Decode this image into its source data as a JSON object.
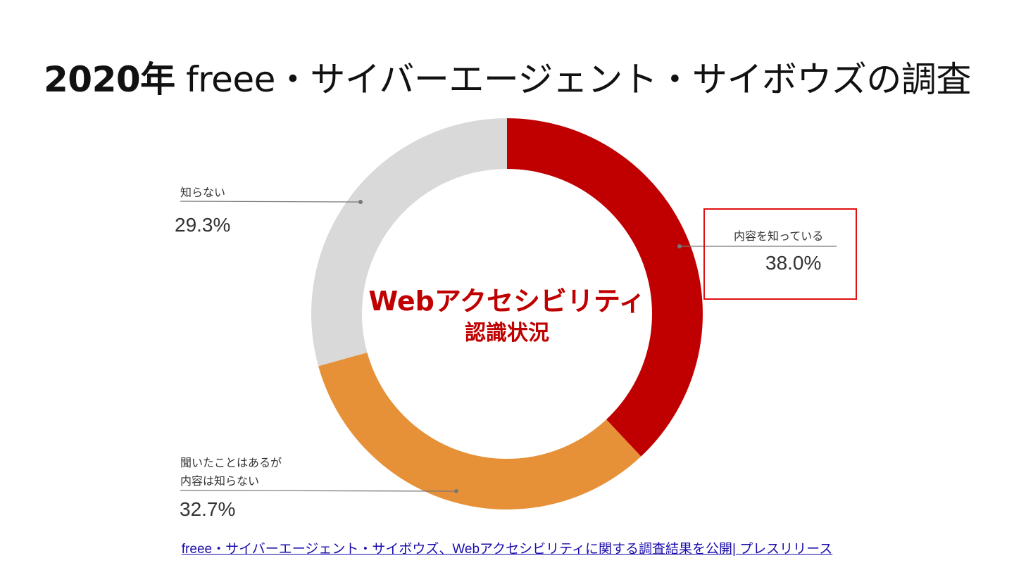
{
  "title": {
    "year": "2020年",
    "rest": " freee・サイバーエージェント・サイボウズの調査"
  },
  "center": {
    "line1": "Webアクセシビリティ",
    "line2": "認識状況"
  },
  "source_link": "freee・サイバーエージェント・サイボウズ、Webアクセシビリティに関する調査結果を公開| プレスリリース",
  "colors": {
    "aware": "#c00000",
    "heard": "#e69138",
    "unaware": "#d9d9d9",
    "highlight": "#e01010"
  },
  "chart_data": {
    "type": "pie",
    "donut": true,
    "start_angle_deg": 0,
    "direction": "clockwise",
    "slices": [
      {
        "name": "内容を知っている",
        "value": 38.0,
        "label": "38.0%",
        "color": "#c00000"
      },
      {
        "name": "聞いたことはあるが内容は知らない",
        "value": 32.7,
        "label": "32.7%",
        "color": "#e69138"
      },
      {
        "name": "知らない",
        "value": 29.3,
        "label": "29.3%",
        "color": "#d9d9d9"
      }
    ],
    "labels": {
      "aware": {
        "lines": [
          "内容を知っている"
        ],
        "pct": "38.0%"
      },
      "heard": {
        "lines": [
          "聞いたことはあるが",
          "内容は知らない"
        ],
        "pct": "32.7%"
      },
      "unaware": {
        "lines": [
          "知らない"
        ],
        "pct": "29.3%"
      }
    }
  }
}
